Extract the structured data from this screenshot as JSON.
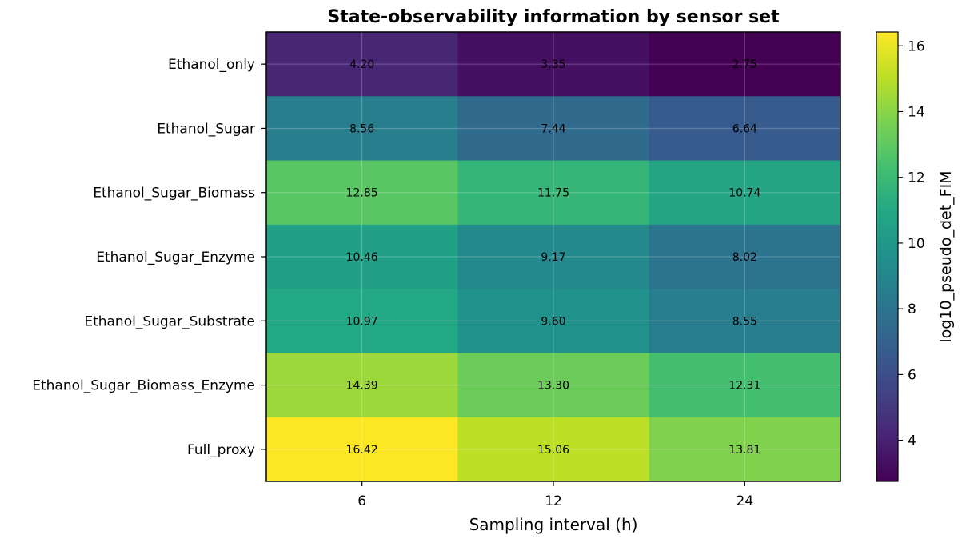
{
  "chart_data": {
    "type": "heatmap",
    "title": "State-observability information by sensor set",
    "xlabel": "Sampling interval (h)",
    "ylabel": "",
    "x_categories": [
      "6",
      "12",
      "24"
    ],
    "y_categories": [
      "Ethanol_only",
      "Ethanol_Sugar",
      "Ethanol_Sugar_Biomass",
      "Ethanol_Sugar_Enzyme",
      "Ethanol_Sugar_Substrate",
      "Ethanol_Sugar_Biomass_Enzyme",
      "Full_proxy"
    ],
    "values": [
      [
        4.2,
        3.35,
        2.75
      ],
      [
        8.56,
        7.44,
        6.64
      ],
      [
        12.85,
        11.75,
        10.74
      ],
      [
        10.46,
        9.17,
        8.02
      ],
      [
        10.97,
        9.6,
        8.55
      ],
      [
        14.39,
        13.3,
        12.31
      ],
      [
        16.42,
        15.06,
        13.81
      ]
    ],
    "value_labels": [
      [
        "4.20",
        "3.35",
        "2.75"
      ],
      [
        "8.56",
        "7.44",
        "6.64"
      ],
      [
        "12.85",
        "11.75",
        "10.74"
      ],
      [
        "10.46",
        "9.17",
        "8.02"
      ],
      [
        "10.97",
        "9.60",
        "8.55"
      ],
      [
        "14.39",
        "13.30",
        "12.31"
      ],
      [
        "16.42",
        "15.06",
        "13.81"
      ]
    ],
    "colormap": "viridis",
    "vmin": 2.75,
    "vmax": 16.42,
    "colorbar": {
      "label": "log10_pseudo_det_FIM",
      "ticks": [
        4,
        6,
        8,
        10,
        12,
        14,
        16
      ],
      "tick_labels": [
        "4",
        "6",
        "8",
        "10",
        "12",
        "14",
        "16"
      ]
    },
    "grid": true
  }
}
